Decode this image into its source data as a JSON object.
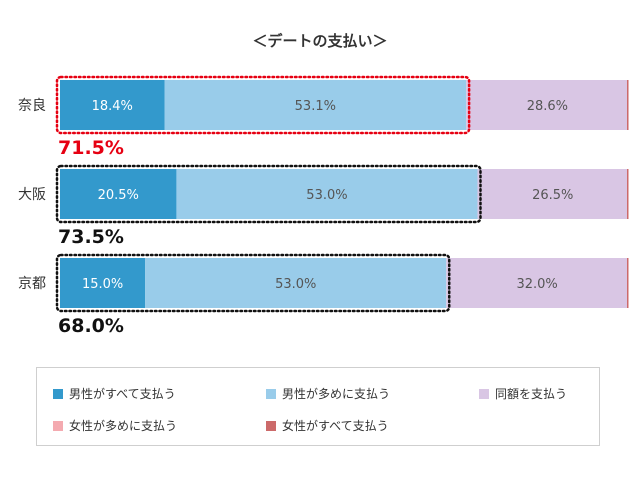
{
  "chart_data": {
    "type": "bar",
    "orientation": "horizontal",
    "stacked": true,
    "title": "＜デートの支払い＞",
    "categories": [
      "奈良",
      "大阪",
      "京都"
    ],
    "series": [
      {
        "name": "男性がすべて支払う",
        "color": "#3399cc",
        "values": [
          18.4,
          20.5,
          15.0
        ]
      },
      {
        "name": "男性が多めに支払う",
        "color": "#99ccea",
        "values": [
          53.1,
          53.0,
          53.0
        ]
      },
      {
        "name": "同額を支払う",
        "color": "#d9c6e4",
        "values": [
          28.6,
          26.5,
          32.0
        ]
      },
      {
        "name": "女性が多めに支払う",
        "color": "#f4aab0",
        "values": [
          0,
          0,
          0
        ]
      },
      {
        "name": "女性がすべて支払う",
        "color": "#cc6a6a",
        "values": [
          0,
          0,
          0
        ]
      }
    ],
    "data_labels": [
      [
        "18.4%",
        "53.1%",
        "28.6%"
      ],
      [
        "20.5%",
        "53.0%",
        "26.5%"
      ],
      [
        "15.0%",
        "53.0%",
        "32.0%"
      ]
    ],
    "group_totals": [
      "71.5%",
      "73.5%",
      "68.0%"
    ],
    "group_total_colors": [
      "#e60012",
      "#111111",
      "#111111"
    ],
    "group_box_colors": [
      "#e60012",
      "#111111",
      "#111111"
    ],
    "xlim": [
      0,
      100
    ],
    "grid": false,
    "legend_position": "bottom"
  }
}
